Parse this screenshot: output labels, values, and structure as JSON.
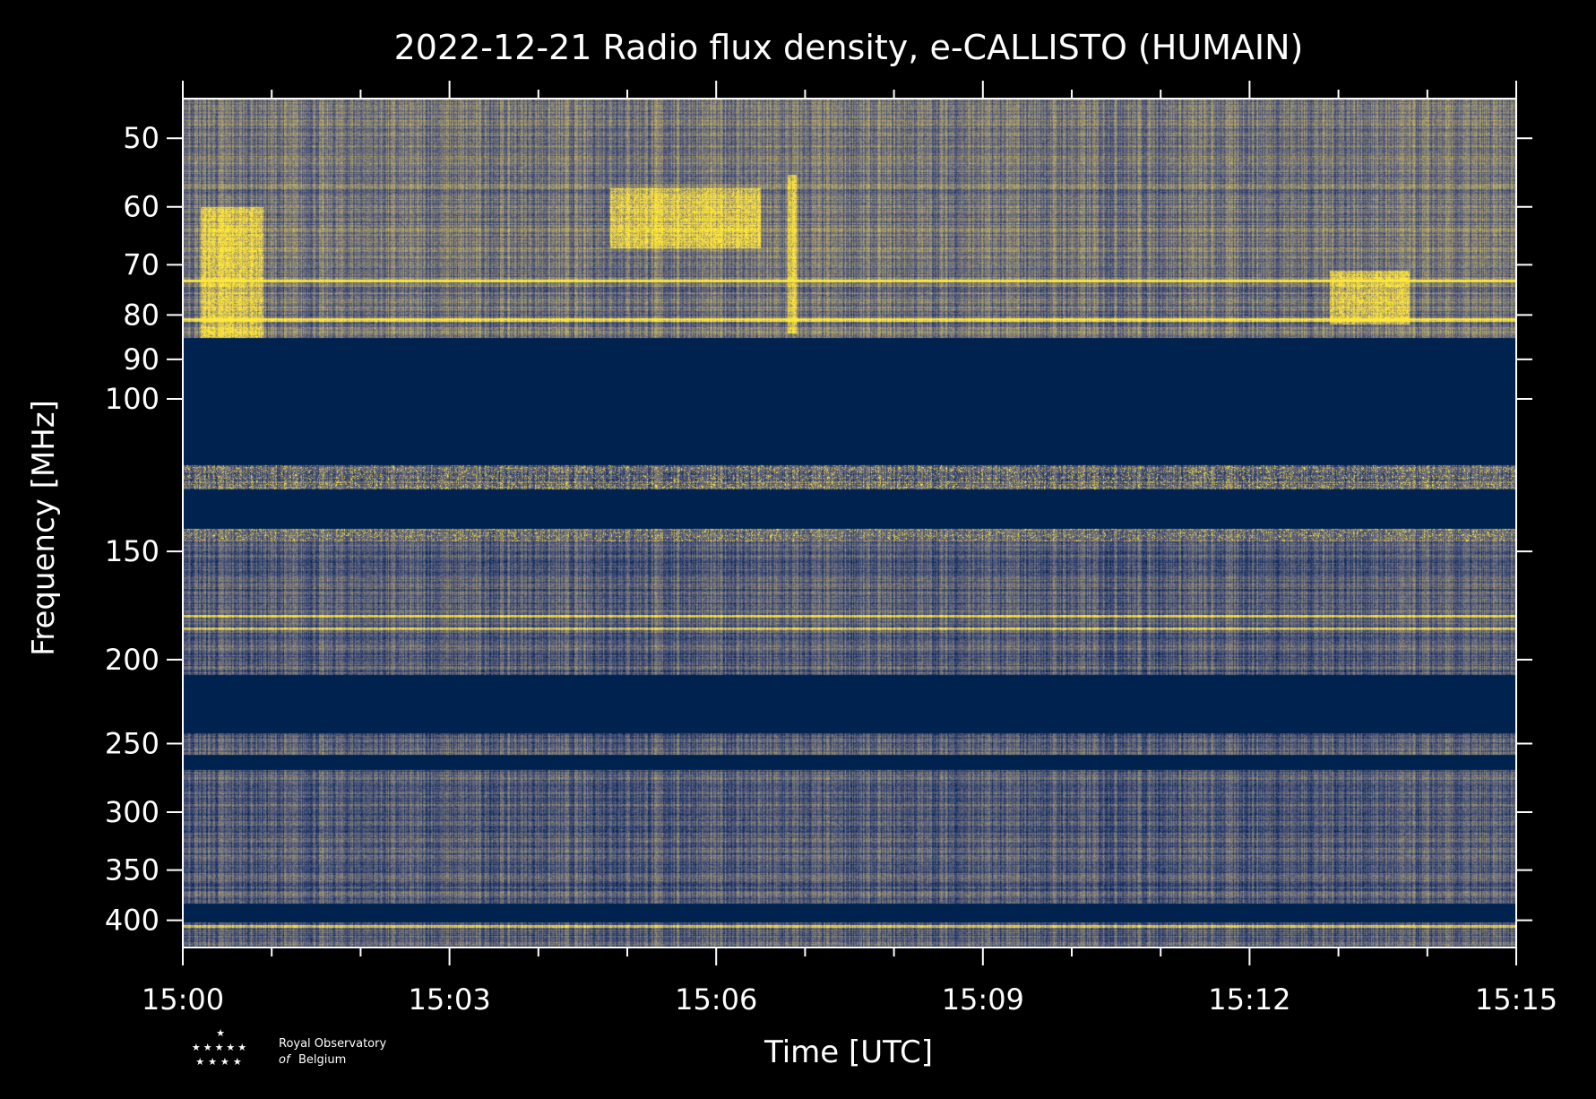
{
  "chart_data": {
    "type": "heatmap",
    "title": "2022-12-21 Radio flux density, e-CALLISTO (HUMAIN)",
    "xlabel": "Time [UTC]",
    "ylabel": "Frequency [MHz]",
    "x_range": [
      "15:00",
      "15:15"
    ],
    "y_range": [
      45,
      430
    ],
    "y_scale": "log",
    "y_inverted": true,
    "x_ticks": [
      "15:00",
      "15:03",
      "15:06",
      "15:09",
      "15:12",
      "15:15"
    ],
    "x_minor_tick_minutes": 1,
    "y_ticks": [
      50,
      60,
      70,
      80,
      90,
      100,
      150,
      200,
      250,
      300,
      350,
      400
    ],
    "colormap": [
      "#00224e",
      "#2a3f6e",
      "#55597a",
      "#7d7c78",
      "#a99d6c",
      "#d8c050",
      "#fee838"
    ],
    "background_color": "#000000",
    "masked_bands_mhz": [
      [
        85,
        119
      ],
      [
        127,
        141
      ],
      [
        208,
        243
      ],
      [
        257,
        268
      ],
      [
        382,
        402
      ]
    ],
    "bright_features": [
      {
        "time_min": [
          0.2,
          0.9
        ],
        "freq_mhz": [
          60,
          85
        ]
      },
      {
        "time_min": [
          4.8,
          6.5
        ],
        "freq_mhz": [
          57,
          67
        ]
      },
      {
        "time_min": [
          6.8,
          6.9
        ],
        "freq_mhz": [
          55,
          84
        ]
      },
      {
        "time_min": [
          12.9,
          13.8
        ],
        "freq_mhz": [
          71,
          82
        ]
      }
    ],
    "narrowband_lines_mhz": [
      73,
      81,
      178,
      184,
      406
    ]
  },
  "logo": {
    "line1": "Royal Observatory",
    "line2_prefix": "of",
    "line2": "Belgium"
  }
}
